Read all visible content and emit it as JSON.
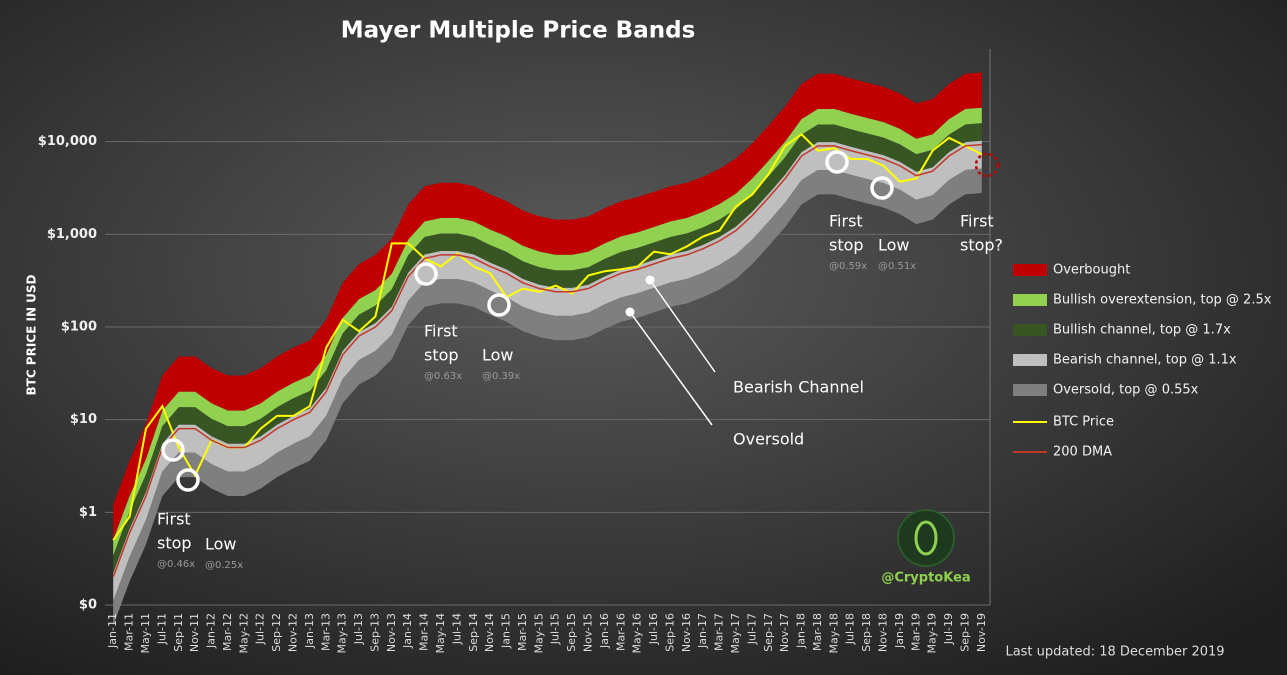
{
  "chart_data": {
    "type": "area",
    "title": "Mayer Multiple Price Bands",
    "y_label": "BTC PRICE IN USD",
    "log_scale": true,
    "grid": true,
    "legend_position": "right",
    "ylim": [
      0.1,
      100000
    ],
    "yticks": [
      {
        "value": 0.1,
        "label": "$0"
      },
      {
        "value": 1,
        "label": "$1"
      },
      {
        "value": 10,
        "label": "$10"
      },
      {
        "value": 100,
        "label": "$100"
      },
      {
        "value": 1000,
        "label": "$1,000"
      },
      {
        "value": 10000,
        "label": "$10,000"
      }
    ],
    "categories": [
      "Jan-11",
      "Mar-11",
      "May-11",
      "Jul-11",
      "Sep-11",
      "Nov-11",
      "Jan-12",
      "Mar-12",
      "May-12",
      "Jul-12",
      "Sep-12",
      "Nov-12",
      "Jan-13",
      "Mar-13",
      "May-13",
      "Jul-13",
      "Sep-13",
      "Nov-13",
      "Jan-14",
      "Mar-14",
      "May-14",
      "Jul-14",
      "Sep-14",
      "Nov-14",
      "Jan-15",
      "Mar-15",
      "May-15",
      "Jul-15",
      "Sep-15",
      "Nov-15",
      "Jan-16",
      "Mar-16",
      "May-16",
      "Jul-16",
      "Sep-16",
      "Nov-16",
      "Jan-17",
      "Mar-17",
      "May-17",
      "Jul-17",
      "Sep-17",
      "Nov-17",
      "Jan-18",
      "Mar-18",
      "May-18",
      "Jul-18",
      "Sep-18",
      "Nov-18",
      "Jan-19",
      "Mar-19",
      "May-19",
      "Jul-19",
      "Sep-19",
      "Nov-19"
    ],
    "series": [
      {
        "name": "Overbought",
        "style": "band",
        "color": "#c00000",
        "values": [
          1.2,
          3.6,
          9,
          30,
          48,
          48,
          36,
          30,
          30,
          36,
          48,
          60,
          72,
          120,
          300,
          480,
          600,
          900,
          2100,
          3300,
          3600,
          3600,
          3300,
          2700,
          2280,
          1800,
          1560,
          1440,
          1440,
          1560,
          1920,
          2280,
          2520,
          2880,
          3300,
          3600,
          4200,
          5100,
          6600,
          9600,
          15000,
          24000,
          42000,
          54000,
          54000,
          48000,
          43200,
          39000,
          33000,
          25800,
          28800,
          42000,
          54000,
          55800
        ]
      },
      {
        "name": "Bullish overextension, top @ 2.5x",
        "style": "band",
        "color": "#92d050",
        "values": [
          0.5,
          1.5,
          3.75,
          12.5,
          20,
          20,
          15,
          12.5,
          12.5,
          15,
          20,
          25,
          30,
          50,
          125,
          200,
          250,
          375,
          875,
          1375,
          1500,
          1500,
          1375,
          1125,
          950,
          750,
          650,
          600,
          600,
          650,
          800,
          950,
          1050,
          1200,
          1375,
          1500,
          1750,
          2125,
          2750,
          4000,
          6250,
          10000,
          17500,
          22500,
          22500,
          20000,
          18000,
          16250,
          13750,
          10750,
          12000,
          17500,
          22500,
          23250
        ]
      },
      {
        "name": "Bullish channel, top @ 1.7x",
        "style": "band",
        "color": "#375623",
        "values": [
          0.34,
          1.02,
          2.55,
          8.5,
          13.6,
          13.6,
          10.2,
          8.5,
          8.5,
          10.2,
          13.6,
          17,
          20.4,
          34,
          85,
          136,
          170,
          255,
          595,
          935,
          1020,
          1020,
          935,
          765,
          646,
          510,
          442,
          408,
          408,
          442,
          544,
          646,
          714,
          816,
          935,
          1020,
          1190,
          1445,
          1870,
          2720,
          4250,
          6800,
          11900,
          15300,
          15300,
          13600,
          12240,
          11050,
          9350,
          7310,
          8160,
          11900,
          15300,
          15810
        ]
      },
      {
        "name": "Bearish channel, top @ 1.1x",
        "style": "band",
        "color": "#bfbfbf",
        "values": [
          0.22,
          0.66,
          1.65,
          5.5,
          8.8,
          8.8,
          6.6,
          5.5,
          5.5,
          6.6,
          8.8,
          11,
          13.2,
          22,
          55,
          88,
          110,
          165,
          385,
          605,
          660,
          660,
          605,
          495,
          418,
          330,
          286,
          264,
          264,
          286,
          352,
          418,
          462,
          528,
          605,
          660,
          770,
          935,
          1210,
          1760,
          2750,
          4400,
          7700,
          9900,
          9900,
          8800,
          7920,
          7150,
          6050,
          4730,
          5280,
          7700,
          9900,
          10230
        ]
      },
      {
        "name": "Oversold, top @ 0.55x",
        "style": "band",
        "color": "#7f7f7f",
        "values": [
          0.11,
          0.33,
          0.83,
          2.75,
          4.4,
          4.4,
          3.3,
          2.75,
          2.75,
          3.3,
          4.4,
          5.5,
          6.6,
          11,
          27.5,
          44,
          55,
          82.5,
          192.5,
          302.5,
          330,
          330,
          302.5,
          247.5,
          209,
          165,
          143,
          132,
          132,
          143,
          176,
          209,
          231,
          264,
          302.5,
          330,
          385,
          467.5,
          605,
          880,
          1375,
          2200,
          3850,
          4950,
          4950,
          4400,
          3960,
          3575,
          3025,
          2365,
          2640,
          3850,
          4950,
          5115
        ],
        "lower_values": [
          0.06,
          0.18,
          0.45,
          1.5,
          2.4,
          2.4,
          1.8,
          1.5,
          1.5,
          1.8,
          2.4,
          3,
          3.6,
          6,
          15,
          24,
          30,
          45,
          105,
          165,
          180,
          180,
          165,
          135,
          114,
          90,
          78,
          72,
          72,
          78,
          96,
          114,
          126,
          144,
          165,
          180,
          210,
          255,
          330,
          480,
          750,
          1200,
          2100,
          2700,
          2700,
          2400,
          2160,
          1950,
          1650,
          1290,
          1440,
          2100,
          2700,
          2790
        ]
      },
      {
        "name": "BTC Price",
        "style": "line",
        "color": "#ffff00",
        "values": [
          0.5,
          0.9,
          8,
          14,
          5,
          2.5,
          6,
          5,
          5,
          8,
          11,
          11,
          14,
          60,
          120,
          90,
          130,
          800,
          800,
          550,
          450,
          620,
          450,
          380,
          210,
          260,
          240,
          280,
          230,
          360,
          400,
          420,
          450,
          650,
          610,
          740,
          950,
          1100,
          2000,
          2700,
          4500,
          9000,
          12000,
          8000,
          8500,
          6500,
          6500,
          5500,
          3700,
          4000,
          8000,
          11000,
          9000,
          7300
        ]
      },
      {
        "name": "200 DMA",
        "style": "line",
        "color": "#c0392b",
        "values": [
          0.2,
          0.6,
          1.5,
          5,
          8,
          8,
          6,
          5,
          5,
          6,
          8,
          10,
          12,
          20,
          50,
          80,
          100,
          150,
          350,
          550,
          600,
          600,
          550,
          450,
          380,
          300,
          260,
          240,
          240,
          260,
          320,
          380,
          420,
          480,
          550,
          600,
          700,
          850,
          1100,
          1600,
          2500,
          4000,
          7000,
          9000,
          9000,
          8000,
          7200,
          6500,
          5500,
          4300,
          4800,
          7000,
          9000,
          9300
        ]
      }
    ],
    "annotations": [
      {
        "lines": [
          "First",
          "stop"
        ],
        "multiple": "@0.46x"
      },
      {
        "lines": [
          "Low"
        ],
        "multiple": "@0.25x"
      },
      {
        "lines": [
          "First",
          "stop"
        ],
        "multiple": "@0.63x"
      },
      {
        "lines": [
          "Low"
        ],
        "multiple": "@0.39x"
      },
      {
        "lines": [
          "First",
          "stop"
        ],
        "multiple": "@0.59x"
      },
      {
        "lines": [
          "Low"
        ],
        "multiple": "@0.51x"
      },
      {
        "lines": [
          "First",
          "stop?"
        ]
      }
    ],
    "callouts": [
      "Bearish Channel",
      "Oversold"
    ],
    "watermark": "@CryptoKea",
    "footnote": "Last updated: 18 December 2019"
  }
}
